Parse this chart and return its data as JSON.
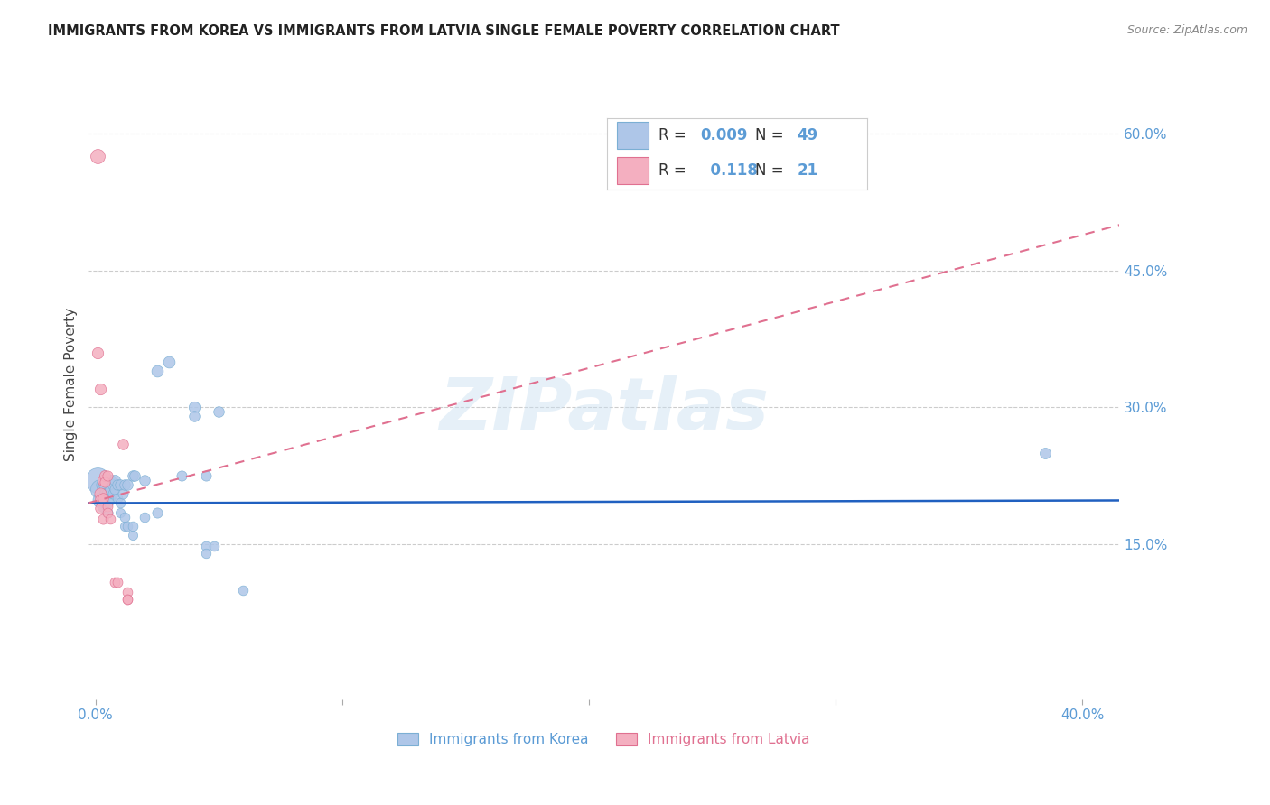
{
  "title": "IMMIGRANTS FROM KOREA VS IMMIGRANTS FROM LATVIA SINGLE FEMALE POVERTY CORRELATION CHART",
  "source": "Source: ZipAtlas.com",
  "ylabel": "Single Female Poverty",
  "y_ticks_right": [
    0.15,
    0.3,
    0.45,
    0.6
  ],
  "y_tick_labels_right": [
    "15.0%",
    "30.0%",
    "45.0%",
    "60.0%"
  ],
  "xlim": [
    -0.003,
    0.415
  ],
  "ylim": [
    -0.02,
    0.67
  ],
  "korea_color": "#aec6e8",
  "korea_edge": "#7bafd4",
  "latvia_color": "#f4afc0",
  "latvia_edge": "#e07090",
  "trend_korea_color": "#2060c0",
  "trend_korea_style": "solid",
  "trend_latvia_color": "#e07090",
  "trend_latvia_style": "dashed",
  "legend_korea_R": "0.009",
  "legend_korea_N": "49",
  "legend_latvia_R": "0.118",
  "legend_latvia_N": "21",
  "watermark": "ZIPatlas",
  "korea_trend_x0": -0.003,
  "korea_trend_y0": 0.195,
  "korea_trend_x1": 0.415,
  "korea_trend_y1": 0.198,
  "latvia_trend_x0": -0.003,
  "latvia_trend_y0": 0.195,
  "latvia_trend_x1": 0.415,
  "latvia_trend_y1": 0.5,
  "korea_points": [
    [
      0.001,
      0.22,
      400
    ],
    [
      0.002,
      0.21,
      250
    ],
    [
      0.002,
      0.198,
      150
    ],
    [
      0.003,
      0.215,
      120
    ],
    [
      0.003,
      0.2,
      90
    ],
    [
      0.003,
      0.192,
      80
    ],
    [
      0.004,
      0.215,
      100
    ],
    [
      0.004,
      0.205,
      80
    ],
    [
      0.004,
      0.195,
      70
    ],
    [
      0.005,
      0.205,
      85
    ],
    [
      0.005,
      0.195,
      75
    ],
    [
      0.005,
      0.185,
      65
    ],
    [
      0.006,
      0.22,
      80
    ],
    [
      0.006,
      0.21,
      70
    ],
    [
      0.006,
      0.2,
      65
    ],
    [
      0.007,
      0.215,
      75
    ],
    [
      0.007,
      0.205,
      65
    ],
    [
      0.008,
      0.22,
      75
    ],
    [
      0.008,
      0.21,
      65
    ],
    [
      0.009,
      0.215,
      70
    ],
    [
      0.009,
      0.2,
      60
    ],
    [
      0.01,
      0.215,
      70
    ],
    [
      0.01,
      0.195,
      60
    ],
    [
      0.01,
      0.185,
      55
    ],
    [
      0.011,
      0.205,
      65
    ],
    [
      0.012,
      0.215,
      70
    ],
    [
      0.012,
      0.18,
      60
    ],
    [
      0.012,
      0.17,
      55
    ],
    [
      0.013,
      0.215,
      70
    ],
    [
      0.013,
      0.17,
      60
    ],
    [
      0.015,
      0.225,
      70
    ],
    [
      0.015,
      0.17,
      60
    ],
    [
      0.015,
      0.16,
      55
    ],
    [
      0.016,
      0.225,
      70
    ],
    [
      0.02,
      0.22,
      70
    ],
    [
      0.02,
      0.18,
      60
    ],
    [
      0.025,
      0.34,
      85
    ],
    [
      0.025,
      0.185,
      65
    ],
    [
      0.03,
      0.35,
      85
    ],
    [
      0.035,
      0.225,
      65
    ],
    [
      0.04,
      0.3,
      80
    ],
    [
      0.04,
      0.29,
      70
    ],
    [
      0.045,
      0.225,
      65
    ],
    [
      0.045,
      0.148,
      60
    ],
    [
      0.045,
      0.14,
      58
    ],
    [
      0.048,
      0.148,
      60
    ],
    [
      0.05,
      0.295,
      70
    ],
    [
      0.06,
      0.1,
      60
    ],
    [
      0.385,
      0.25,
      75
    ]
  ],
  "latvia_points": [
    [
      0.001,
      0.575,
      130
    ],
    [
      0.001,
      0.36,
      80
    ],
    [
      0.002,
      0.32,
      80
    ],
    [
      0.002,
      0.205,
      90
    ],
    [
      0.002,
      0.198,
      80
    ],
    [
      0.002,
      0.19,
      70
    ],
    [
      0.003,
      0.22,
      80
    ],
    [
      0.003,
      0.2,
      70
    ],
    [
      0.003,
      0.178,
      65
    ],
    [
      0.004,
      0.225,
      75
    ],
    [
      0.004,
      0.218,
      65
    ],
    [
      0.005,
      0.225,
      65
    ],
    [
      0.005,
      0.192,
      62
    ],
    [
      0.005,
      0.185,
      60
    ],
    [
      0.006,
      0.178,
      60
    ],
    [
      0.008,
      0.108,
      62
    ],
    [
      0.009,
      0.108,
      62
    ],
    [
      0.011,
      0.26,
      70
    ],
    [
      0.013,
      0.098,
      60
    ],
    [
      0.013,
      0.09,
      60
    ],
    [
      0.013,
      0.09,
      60
    ]
  ]
}
